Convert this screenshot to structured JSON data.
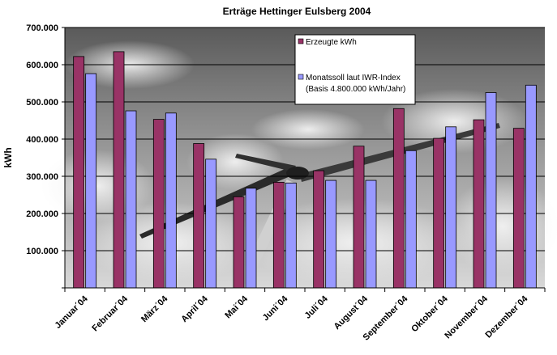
{
  "chart_data": {
    "type": "bar",
    "title": "Erträge Hettinger Eulsberg 2004",
    "xlabel": "",
    "ylabel": "kWh",
    "ylim": [
      0,
      700000
    ],
    "yticks": [
      "",
      "100.000",
      "200.000",
      "300.000",
      "400.000",
      "500.000",
      "600.000",
      "700.000"
    ],
    "grid": true,
    "legend_position": "top-right",
    "categories": [
      "Januar´04",
      "Februar´04",
      "März´04",
      "April´04",
      "Mai´04",
      "Juni´04",
      "Juli´04",
      "August´04",
      "September´04",
      "Oktober´04",
      "November´04",
      "Dezember´04"
    ],
    "series": [
      {
        "name": "Erzeugte kWh",
        "color": "#993366",
        "values": [
          622000,
          635000,
          453000,
          388000,
          245000,
          284000,
          315000,
          381000,
          482000,
          402000,
          452000,
          429000
        ]
      },
      {
        "name": "Monatssoll laut IWR-Index",
        "name_line2": "(Basis 4.800.000 kWh/Jahr)",
        "color": "#9999ff",
        "values": [
          576000,
          476000,
          470000,
          346000,
          268000,
          282000,
          289000,
          289000,
          369000,
          433000,
          525000,
          545000
        ]
      }
    ]
  }
}
